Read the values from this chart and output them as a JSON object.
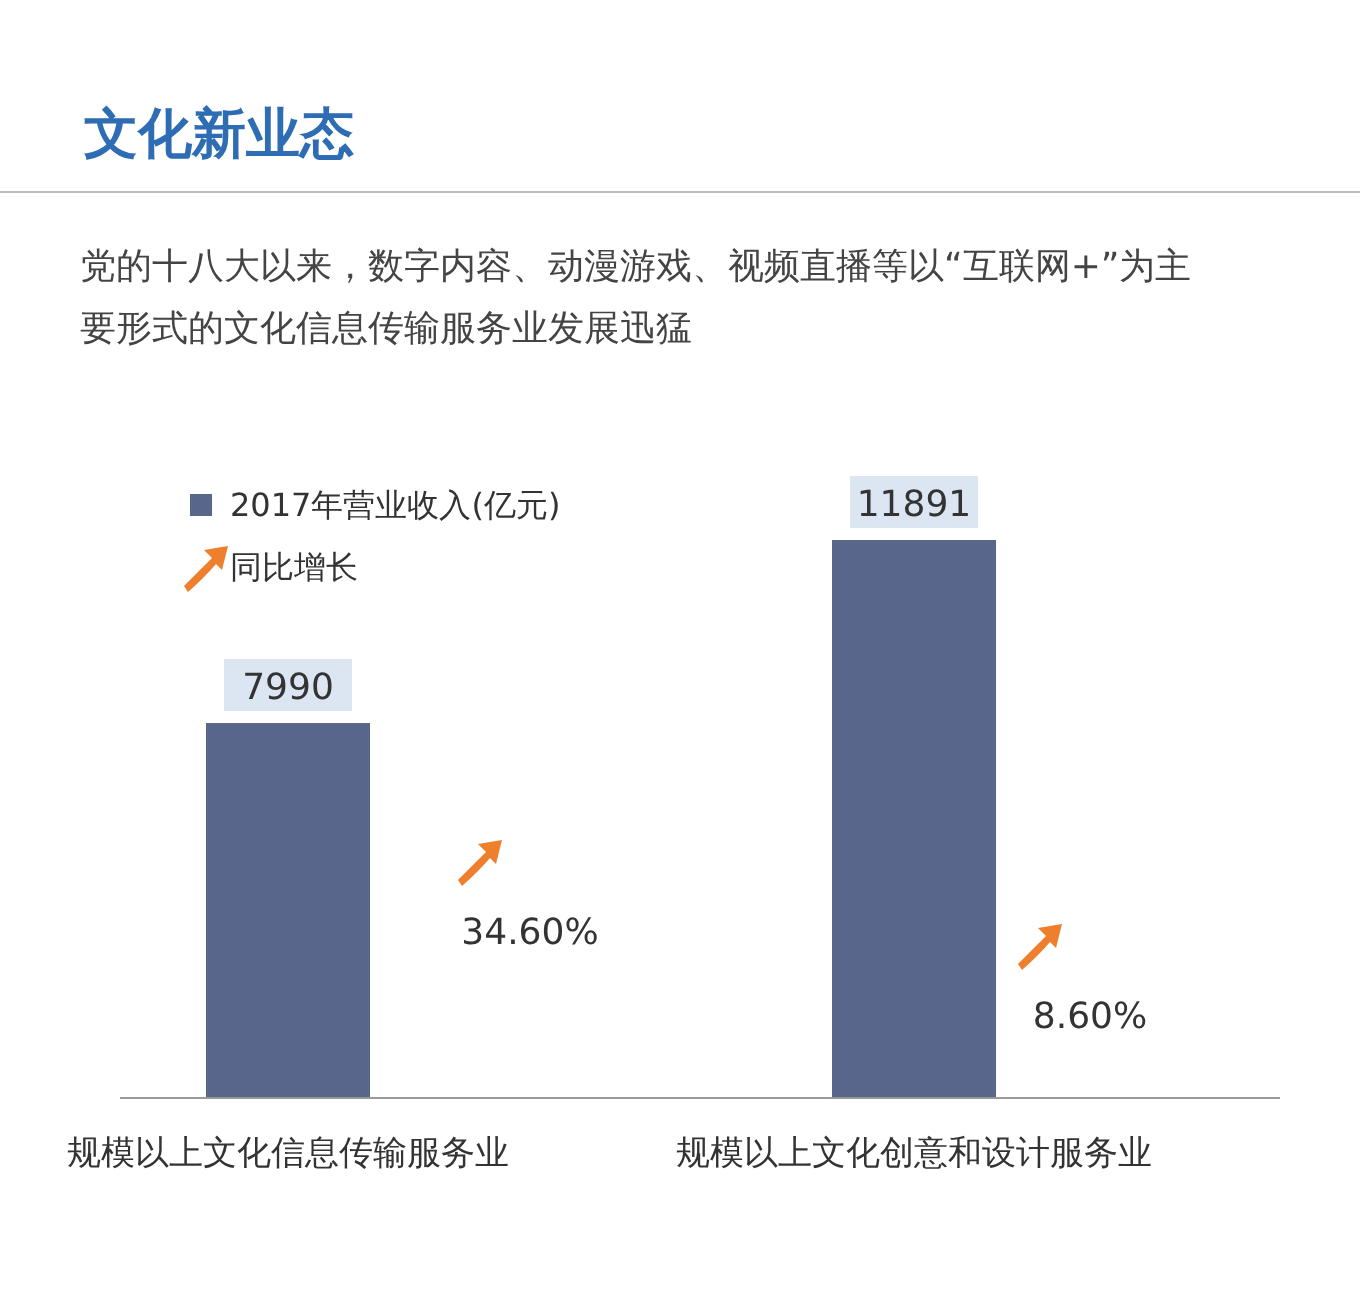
{
  "chart_data": {
    "type": "bar",
    "title": "文化新业态",
    "subtitle": "党的十八大以来，数字内容、动漫游戏、视频直播等以“互联网+”为主要形式的文化信息传输服务业发展迅猛",
    "categories": [
      "规模以上文化信息传输服务业",
      "规模以上文化创意和设计服务业"
    ],
    "series": [
      {
        "name": "2017年营业收入(亿元)",
        "color": "#58668b",
        "values": [
          7990,
          11891
        ]
      }
    ],
    "data_labels": true,
    "legend": "top left",
    "grid": false,
    "annotations": [
      "同比增长",
      "34.60%",
      "8.60%"
    ]
  }
}
